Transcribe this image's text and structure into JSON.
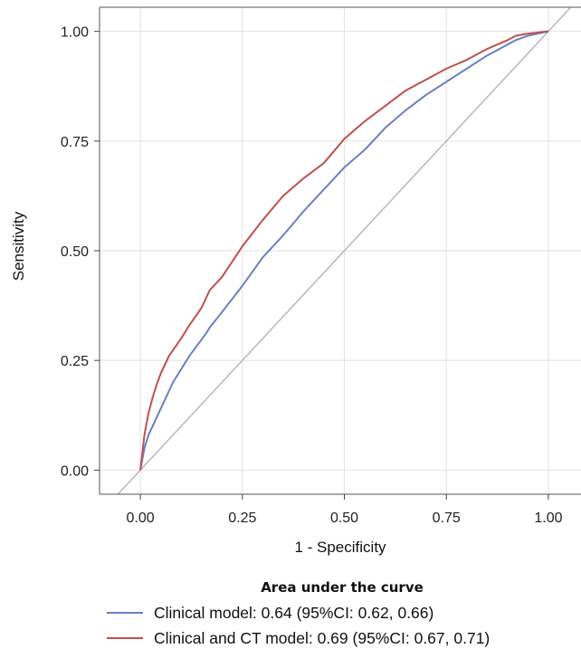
{
  "chart_data": {
    "type": "line",
    "xlabel": "1 - Specificity",
    "ylabel": "Sensitivity",
    "xlim": [
      -0.1,
      1.08
    ],
    "ylim": [
      -0.055,
      1.055
    ],
    "x_ticks": [
      "0.00",
      "0.25",
      "0.50",
      "0.75",
      "1.00"
    ],
    "y_ticks": [
      "0.00",
      "0.25",
      "0.50",
      "0.75",
      "1.00"
    ],
    "grid": true,
    "legend": {
      "title": "Area under the curve",
      "placement": "bottom"
    },
    "series": [
      {
        "name": "Clinical model: 0.64 (95%CI: 0.62,  0.66)",
        "color": "#6b7fc4",
        "x": [
          0,
          0.01,
          0.02,
          0.04,
          0.06,
          0.08,
          0.1,
          0.12,
          0.14,
          0.16,
          0.17,
          0.2,
          0.25,
          0.3,
          0.35,
          0.4,
          0.45,
          0.5,
          0.55,
          0.6,
          0.65,
          0.7,
          0.75,
          0.8,
          0.85,
          0.9,
          0.92,
          0.95,
          1.0
        ],
        "y": [
          0,
          0.05,
          0.08,
          0.12,
          0.16,
          0.2,
          0.23,
          0.26,
          0.285,
          0.31,
          0.325,
          0.36,
          0.42,
          0.485,
          0.535,
          0.59,
          0.64,
          0.69,
          0.73,
          0.78,
          0.82,
          0.855,
          0.885,
          0.915,
          0.945,
          0.97,
          0.98,
          0.99,
          1.0
        ]
      },
      {
        "name": "Clinical and CT model: 0.69 (95%CI: 0.67,  0.71)",
        "color": "#c0504d",
        "x": [
          0,
          0.005,
          0.01,
          0.02,
          0.03,
          0.04,
          0.05,
          0.07,
          0.1,
          0.12,
          0.15,
          0.17,
          0.2,
          0.25,
          0.3,
          0.35,
          0.4,
          0.45,
          0.5,
          0.55,
          0.6,
          0.65,
          0.7,
          0.75,
          0.8,
          0.85,
          0.9,
          0.92,
          0.95,
          1.0
        ],
        "y": [
          0,
          0.04,
          0.08,
          0.13,
          0.165,
          0.195,
          0.22,
          0.26,
          0.3,
          0.33,
          0.37,
          0.41,
          0.44,
          0.51,
          0.57,
          0.625,
          0.665,
          0.7,
          0.755,
          0.795,
          0.83,
          0.865,
          0.89,
          0.915,
          0.935,
          0.96,
          0.98,
          0.99,
          0.995,
          1.0
        ]
      },
      {
        "color": "#b8b8b8",
        "x": [
          -0.1,
          1.08
        ],
        "y": [
          -0.1,
          1.08
        ]
      }
    ]
  }
}
